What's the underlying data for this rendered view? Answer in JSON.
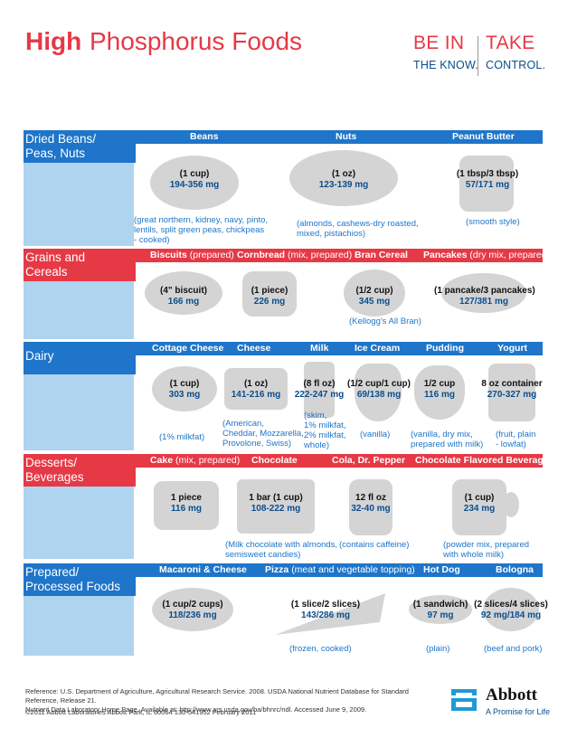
{
  "header": {
    "title_bold": "High",
    "title_rest": "Phosphorus Foods",
    "tagline_left_big": "BE IN",
    "tagline_left_small": "THE KNOW.",
    "tagline_right_big": "TAKE",
    "tagline_right_small": "CONTROL."
  },
  "colors": {
    "blue": "#1e75c9",
    "red": "#e63946",
    "light_blue": "#aed4ef",
    "navy": "#0a4e8c"
  },
  "sections": {
    "beans": {
      "category": [
        "Dried Beans/",
        "Peas, Nuts"
      ],
      "items": [
        {
          "name": "Beans",
          "serving": "(1 cup)",
          "amount": "194-356 mg",
          "note": [
            "(great northern, kidney, navy, pinto,",
            "lentils, split green peas, chickpeas",
            "- cooked)"
          ]
        },
        {
          "name": "Nuts",
          "serving": "(1 oz)",
          "amount": "123-139 mg",
          "note": [
            "(almonds, cashews-dry roasted,",
            "mixed, pistachios)"
          ]
        },
        {
          "name": "Peanut Butter",
          "serving": "(1 tbsp/3 tbsp)",
          "amount": "57/171 mg",
          "note": [
            "(smooth style)"
          ]
        }
      ]
    },
    "grains": {
      "category": [
        "Grains and",
        "Cereals"
      ],
      "items": [
        {
          "name": "Biscuits",
          "qualifier": "(prepared)",
          "serving": "(4\" biscuit)",
          "amount": "166 mg"
        },
        {
          "name": "Cornbread",
          "qualifier": "(mix, prepared)",
          "serving": "(1 piece)",
          "amount": "226 mg"
        },
        {
          "name": "Bran Cereal",
          "serving": "(1/2 cup)",
          "amount": "345 mg",
          "note": [
            "(Kellogg's All Bran)"
          ]
        },
        {
          "name": "Pancakes",
          "qualifier": "(dry mix, prepared)",
          "serving": "(1 pancake/3 pancakes)",
          "amount": "127/381 mg"
        }
      ]
    },
    "dairy": {
      "category": [
        "Dairy"
      ],
      "items": [
        {
          "name": "Cottage Cheese",
          "serving": "(1 cup)",
          "amount": "303 mg",
          "note": [
            "(1% milkfat)"
          ]
        },
        {
          "name": "Cheese",
          "serving": "(1 oz)",
          "amount": "141-216 mg",
          "note": [
            "(American,",
            "Cheddar, Mozzarella,",
            "Provolone, Swiss)"
          ]
        },
        {
          "name": "Milk",
          "serving": "(8 fl oz)",
          "amount": "222-247 mg",
          "note": [
            "(skim,",
            "1% milkfat,",
            "2% milkfat,",
            "whole)"
          ]
        },
        {
          "name": "Ice Cream",
          "serving": "(1/2 cup/1 cup)",
          "amount": "69/138 mg",
          "note": [
            "(vanilla)"
          ]
        },
        {
          "name": "Pudding",
          "serving": "1/2 cup",
          "amount": "116 mg",
          "note": [
            "(vanilla, dry mix,",
            "prepared with milk)"
          ]
        },
        {
          "name": "Yogurt",
          "serving": "8 oz container",
          "amount": "270-327 mg",
          "note": [
            "(fruit, plain",
            "- lowfat)"
          ]
        }
      ]
    },
    "desserts": {
      "category": [
        "Desserts/",
        "Beverages"
      ],
      "items": [
        {
          "name": "Cake",
          "qualifier": "(mix, prepared)",
          "serving": "1 piece",
          "amount": "116 mg"
        },
        {
          "name": "Chocolate",
          "serving": "1 bar (1 cup)",
          "amount": "108-222 mg",
          "note": [
            "(Milk chocolate with almonds,",
            "semisweet candies)"
          ]
        },
        {
          "name": "Cola, Dr. Pepper",
          "serving": "12 fl oz",
          "amount": "32-40 mg",
          "note": [
            "(contains caffeine)"
          ]
        },
        {
          "name": "Chocolate Flavored Beverage",
          "serving": "(1 cup)",
          "amount": "234 mg",
          "note": [
            "(powder mix, prepared",
            "with whole milk)"
          ]
        }
      ]
    },
    "prepared": {
      "category": [
        "Prepared/",
        "Processed Foods"
      ],
      "items": [
        {
          "name": "Macaroni & Cheese",
          "serving": "(1 cup/2 cups)",
          "amount": "118/236 mg"
        },
        {
          "name": "Pizza",
          "qualifier": "(meat and vegetable topping)",
          "serving": "(1 slice/2 slices)",
          "amount": "143/286 mg",
          "note": [
            "(frozen, cooked)"
          ]
        },
        {
          "name": "Hot Dog",
          "serving": "(1 sandwich)",
          "amount": "97 mg",
          "note": [
            "(plain)"
          ]
        },
        {
          "name": "Bologna",
          "serving": "(2 slices/4 slices)",
          "amount": "92 mg/184 mg",
          "note": [
            "(beef and pork)"
          ]
        }
      ]
    }
  },
  "footer": {
    "reference_1": "Reference: U.S. Department of Agriculture, Agricultural Research Service. 2008. USDA National Nutrient Database for Standard Reference, Release 21.",
    "reference_2": "Nutrient Data Laboratory Home Page. Available at: http://www.ars.usda.gov/ba/bhnrc/ndl. Accessed June 9, 2009.",
    "copyright": "©2011 Abbott Laboratories   Abbott Park, IL 60064   130-541952   February 2011",
    "brand": "Abbott",
    "brand_tagline": "A Promise for Life"
  }
}
